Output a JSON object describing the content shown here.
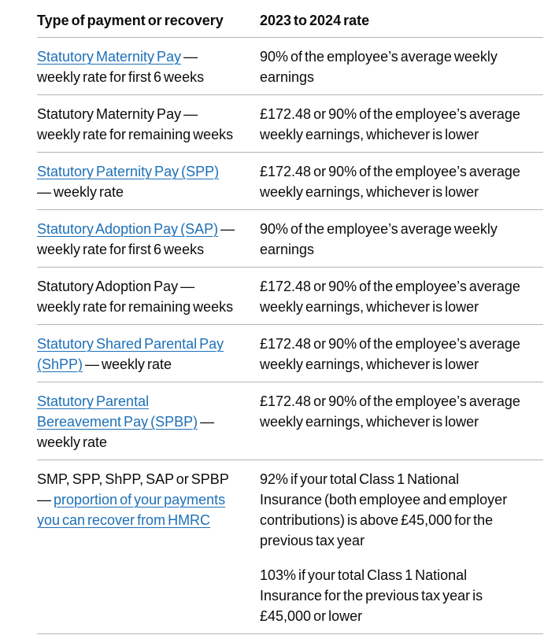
{
  "theme": {
    "text_color": "#0b0c0c",
    "link_color": "#1d70b8",
    "border_color": "#b1b4b6",
    "background": "#ffffff"
  },
  "table": {
    "columns": [
      "Type of payment or recovery",
      "2023 to 2024 rate"
    ],
    "rows": [
      {
        "payment": [
          {
            "text": "Statutory Maternity Pay",
            "link": true
          },
          {
            "text": " — weekly rate for first 6 weeks",
            "link": false
          }
        ],
        "rate": [
          "90% of the employee’s average weekly earnings"
        ]
      },
      {
        "payment": [
          {
            "text": "Statutory Maternity Pay — weekly rate for remaining weeks",
            "link": false
          }
        ],
        "rate": [
          "£172.48 or 90% of the employee’s average weekly earnings, whichever is lower"
        ]
      },
      {
        "payment": [
          {
            "text": "Statutory Paternity Pay (SPP)",
            "link": true
          },
          {
            "text": " — weekly rate",
            "link": false
          }
        ],
        "rate": [
          "£172.48 or 90% of the employee’s average weekly earnings, whichever is lower"
        ]
      },
      {
        "payment": [
          {
            "text": "Statutory Adoption Pay (SAP)",
            "link": true
          },
          {
            "text": " — weekly rate for first 6 weeks",
            "link": false
          }
        ],
        "rate": [
          "90% of the employee’s average weekly earnings"
        ]
      },
      {
        "payment": [
          {
            "text": "Statutory Adoption Pay — weekly rate for remaining weeks",
            "link": false
          }
        ],
        "rate": [
          "£172.48 or 90% of the employee’s average weekly earnings, whichever is lower"
        ]
      },
      {
        "payment": [
          {
            "text": "Statutory Shared Parental Pay (ShPP)",
            "link": true
          },
          {
            "text": " — weekly rate",
            "link": false
          }
        ],
        "rate": [
          "£172.48 or 90% of the employee’s average weekly earnings, whichever is lower"
        ]
      },
      {
        "payment": [
          {
            "text": "Statutory Parental Bereavement Pay (SPBP)",
            "link": true
          },
          {
            "text": " — weekly rate",
            "link": false
          }
        ],
        "rate": [
          "£172.48 or 90% of the employee’s average weekly earnings, whichever is lower"
        ]
      },
      {
        "payment": [
          {
            "text": "SMP, SPP, ShPP, SAP or SPBP — ",
            "link": false
          },
          {
            "text": "proportion of your payments you can recover from HMRC",
            "link": true
          }
        ],
        "rate": [
          "92% if your total Class 1 National Insurance (both employee and employer contributions) is above £45,000 for the previous tax year",
          "103% if your total Class 1 National Insurance for the previous tax year is £45,000 or lower"
        ]
      }
    ]
  }
}
